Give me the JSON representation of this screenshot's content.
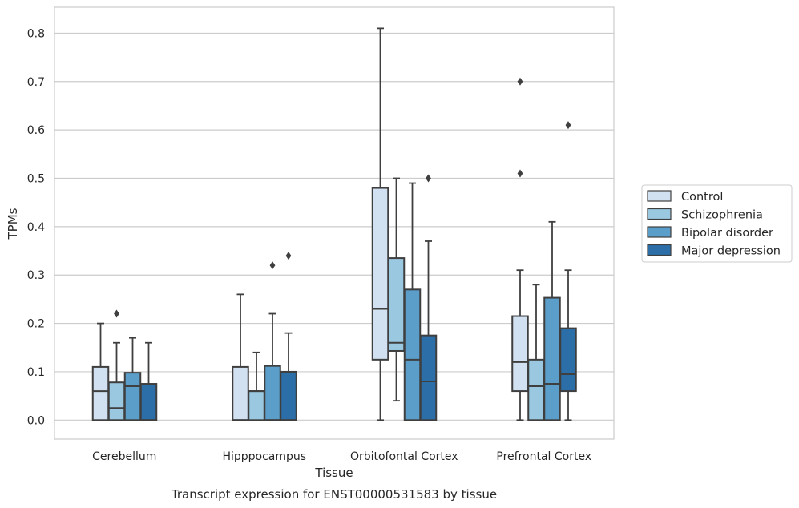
{
  "chart_data": {
    "type": "box",
    "title": "Transcript expression for ENST00000531583 by tissue",
    "xlabel": "Tissue",
    "ylabel": "TPMs",
    "ylim": [
      -0.04,
      0.855
    ],
    "yticks": [
      0.0,
      0.1,
      0.2,
      0.3,
      0.4,
      0.5,
      0.6,
      0.7,
      0.8
    ],
    "ytick_labels": [
      "0.0",
      "0.1",
      "0.2",
      "0.3",
      "0.4",
      "0.5",
      "0.6",
      "0.7",
      "0.8"
    ],
    "grid": "horizontal",
    "legend_position": "right",
    "categories": [
      "Cerebellum",
      "Hipppocampus",
      "Orbitofontal Cortex",
      "Prefrontal Cortex"
    ],
    "series": [
      {
        "name": "Control",
        "color": "#d1e1f1",
        "boxes": [
          {
            "whislo": 0.0,
            "q1": 0.0,
            "med": 0.06,
            "q3": 0.11,
            "whishi": 0.2,
            "fliers": []
          },
          {
            "whislo": 0.0,
            "q1": 0.0,
            "med": 0.0,
            "q3": 0.11,
            "whishi": 0.26,
            "fliers": []
          },
          {
            "whislo": 0.0,
            "q1": 0.125,
            "med": 0.23,
            "q3": 0.48,
            "whishi": 0.81,
            "fliers": []
          },
          {
            "whislo": 0.0,
            "q1": 0.06,
            "med": 0.12,
            "q3": 0.215,
            "whishi": 0.31,
            "fliers": [
              0.51,
              0.7
            ]
          }
        ]
      },
      {
        "name": "Schizophrenia",
        "color": "#9ac8e0",
        "boxes": [
          {
            "whislo": 0.0,
            "q1": 0.0,
            "med": 0.025,
            "q3": 0.078,
            "whishi": 0.16,
            "fliers": [
              0.22
            ]
          },
          {
            "whislo": 0.0,
            "q1": 0.0,
            "med": 0.06,
            "q3": 0.06,
            "whishi": 0.14,
            "fliers": []
          },
          {
            "whislo": 0.04,
            "q1": 0.143,
            "med": 0.16,
            "q3": 0.335,
            "whishi": 0.5,
            "fliers": []
          },
          {
            "whislo": 0.0,
            "q1": 0.0,
            "med": 0.07,
            "q3": 0.125,
            "whishi": 0.28,
            "fliers": []
          }
        ]
      },
      {
        "name": "Bipolar disorder",
        "color": "#5a9ec9",
        "boxes": [
          {
            "whislo": 0.0,
            "q1": 0.0,
            "med": 0.07,
            "q3": 0.098,
            "whishi": 0.17,
            "fliers": []
          },
          {
            "whislo": 0.0,
            "q1": 0.0,
            "med": 0.0,
            "q3": 0.112,
            "whishi": 0.22,
            "fliers": [
              0.32
            ]
          },
          {
            "whislo": 0.0,
            "q1": 0.0,
            "med": 0.125,
            "q3": 0.27,
            "whishi": 0.49,
            "fliers": []
          },
          {
            "whislo": 0.0,
            "q1": 0.0,
            "med": 0.075,
            "q3": 0.253,
            "whishi": 0.41,
            "fliers": []
          }
        ]
      },
      {
        "name": "Major depression",
        "color": "#2b6ea8",
        "boxes": [
          {
            "whislo": 0.0,
            "q1": 0.0,
            "med": 0.0,
            "q3": 0.075,
            "whishi": 0.16,
            "fliers": []
          },
          {
            "whislo": 0.0,
            "q1": 0.0,
            "med": 0.0,
            "q3": 0.1,
            "whishi": 0.18,
            "fliers": [
              0.34
            ]
          },
          {
            "whislo": 0.0,
            "q1": 0.0,
            "med": 0.08,
            "q3": 0.175,
            "whishi": 0.37,
            "fliers": [
              0.5
            ]
          },
          {
            "whislo": 0.0,
            "q1": 0.06,
            "med": 0.095,
            "q3": 0.19,
            "whishi": 0.31,
            "fliers": [
              0.61
            ]
          }
        ]
      }
    ]
  }
}
